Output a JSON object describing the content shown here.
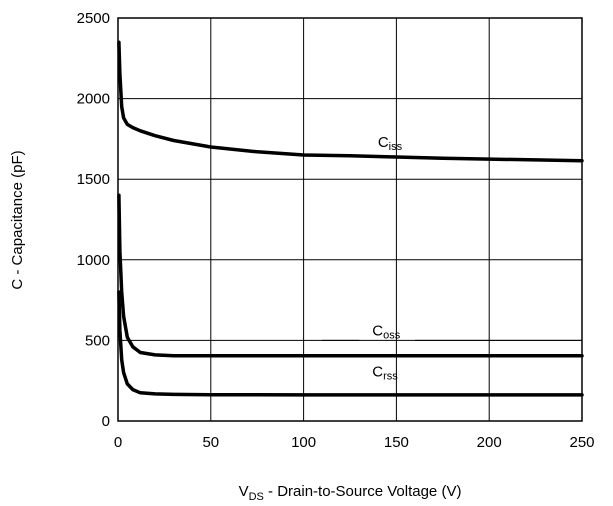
{
  "chart_data": {
    "type": "line",
    "title": "",
    "xlabel": {
      "main": "V",
      "sub": "DS",
      "rest": " - Drain-to-Source Voltage (V)"
    },
    "ylabel": "C - Capacitance (pF)",
    "xlim": [
      0,
      250
    ],
    "ylim": [
      0,
      2500
    ],
    "xticks": [
      0,
      50,
      100,
      150,
      200,
      250
    ],
    "yticks": [
      0,
      500,
      1000,
      1500,
      2000,
      2500
    ],
    "xtick_labels": [
      "0",
      "50",
      "100",
      "150",
      "200",
      "250"
    ],
    "ytick_labels": [
      "0",
      "500",
      "1000",
      "1500",
      "2000",
      "2500"
    ],
    "grid": true,
    "series": [
      {
        "name": "Ciss",
        "label_main": "C",
        "label_sub": "iss",
        "color": "#000000",
        "x": [
          0.5,
          1,
          2,
          3,
          5,
          8,
          12,
          20,
          30,
          50,
          75,
          100,
          125,
          150,
          175,
          200,
          225,
          250
        ],
        "y": [
          2350,
          2150,
          1950,
          1880,
          1840,
          1820,
          1800,
          1770,
          1740,
          1700,
          1670,
          1650,
          1645,
          1638,
          1630,
          1625,
          1620,
          1615
        ]
      },
      {
        "name": "Coss",
        "label_main": "C",
        "label_sub": "oss",
        "color": "#000000",
        "x": [
          0.5,
          1,
          2,
          3,
          5,
          8,
          12,
          20,
          30,
          50,
          100,
          150,
          200,
          250
        ],
        "y": [
          1400,
          1050,
          800,
          650,
          520,
          460,
          425,
          410,
          405,
          405,
          405,
          405,
          405,
          405
        ]
      },
      {
        "name": "Crss",
        "label_main": "C",
        "label_sub": "rss",
        "color": "#000000",
        "x": [
          0.5,
          1,
          2,
          3,
          5,
          8,
          12,
          20,
          30,
          50,
          100,
          150,
          200,
          250
        ],
        "y": [
          800,
          560,
          380,
          300,
          230,
          195,
          175,
          168,
          165,
          163,
          162,
          162,
          162,
          162
        ]
      }
    ],
    "annotation_lines": [
      {
        "series": "Coss",
        "y": 500,
        "x_ranges": [
          [
            110,
            130
          ],
          [
            160,
            250
          ]
        ]
      }
    ],
    "label_positions": [
      {
        "series": "Ciss",
        "x": 140,
        "y": 1700
      },
      {
        "series": "Coss",
        "x": 137,
        "y": 530
      },
      {
        "series": "Crss",
        "x": 137,
        "y": 275
      }
    ]
  }
}
